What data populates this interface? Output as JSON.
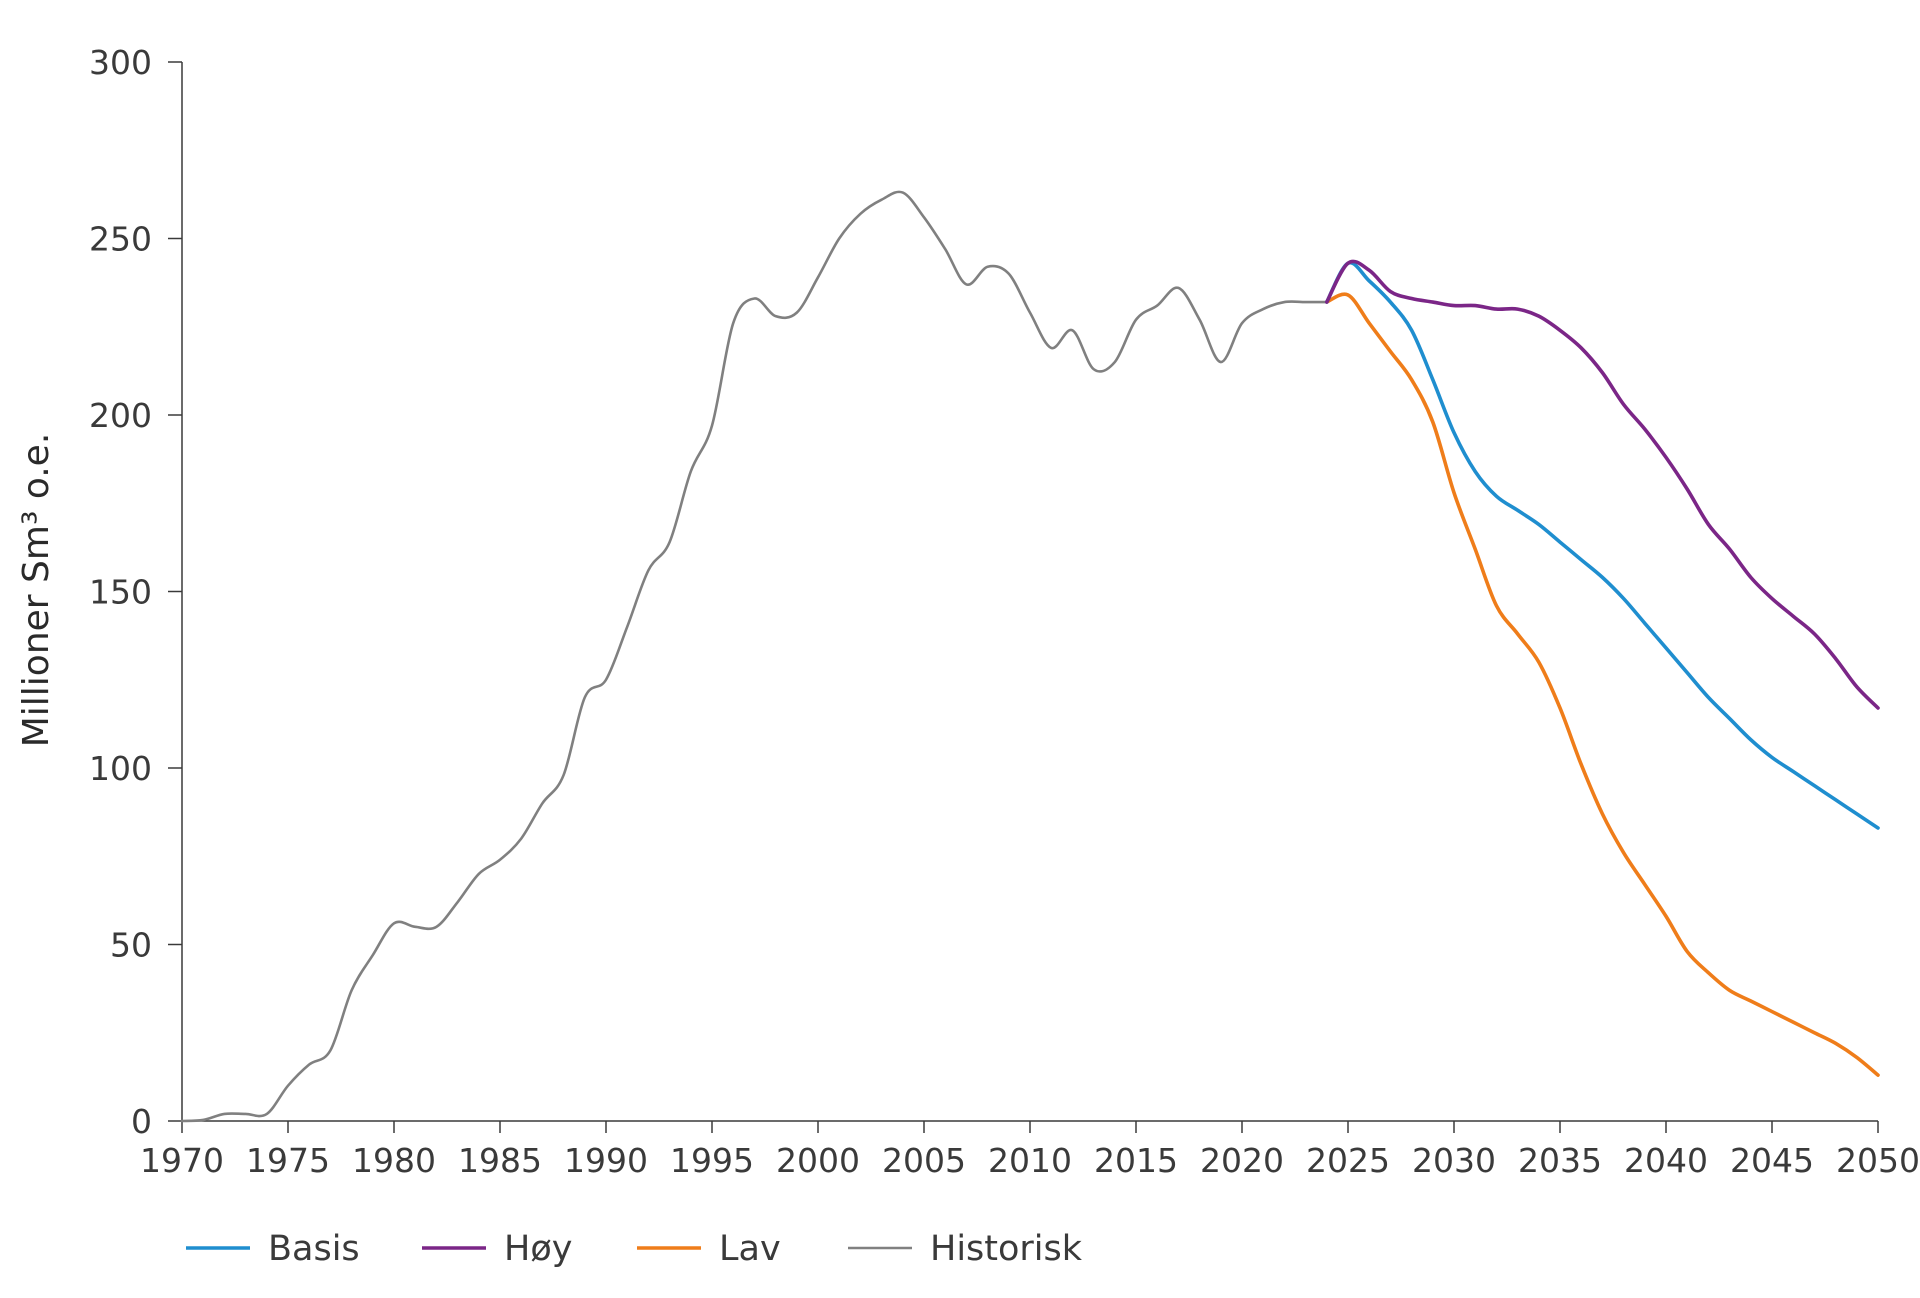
{
  "chart_data": {
    "type": "line",
    "title": "",
    "xlabel": "",
    "ylabel": "Millioner Sm³ o.e.",
    "xlim": [
      1970,
      2050
    ],
    "ylim": [
      0,
      300
    ],
    "xticks": [
      1970,
      1975,
      1980,
      1985,
      1990,
      1995,
      2000,
      2005,
      2010,
      2015,
      2020,
      2025,
      2030,
      2035,
      2040,
      2045,
      2050
    ],
    "yticks": [
      0,
      50,
      100,
      150,
      200,
      250,
      300
    ],
    "grid": false,
    "legend_position": "bottom-left",
    "legend": [
      "Basis",
      "Høy",
      "Lav",
      "Historisk"
    ],
    "series": [
      {
        "name": "Historisk",
        "color": "#808080",
        "x": [
          1970,
          1971,
          1972,
          1973,
          1974,
          1975,
          1976,
          1977,
          1978,
          1979,
          1980,
          1981,
          1982,
          1983,
          1984,
          1985,
          1986,
          1987,
          1988,
          1989,
          1990,
          1991,
          1992,
          1993,
          1994,
          1995,
          1996,
          1997,
          1998,
          1999,
          2000,
          2001,
          2002,
          2003,
          2004,
          2005,
          2006,
          2007,
          2008,
          2009,
          2010,
          2011,
          2012,
          2013,
          2014,
          2015,
          2016,
          2017,
          2018,
          2019,
          2020,
          2021,
          2022,
          2023,
          2024
        ],
        "values": [
          0,
          0.3,
          2,
          2,
          2,
          10,
          16,
          20,
          37,
          47,
          56,
          55,
          55,
          62,
          70,
          74,
          80,
          90,
          98,
          120,
          125,
          140,
          156,
          164,
          184,
          197,
          226,
          233,
          228,
          229,
          239,
          250,
          257,
          261,
          263,
          256,
          247,
          237,
          242,
          240,
          229,
          219,
          224,
          213,
          215,
          227,
          231,
          236,
          227,
          215,
          226,
          230,
          232,
          232,
          232
        ]
      },
      {
        "name": "Basis",
        "color": "#1f8ecf",
        "x": [
          2024,
          2025,
          2026,
          2027,
          2028,
          2029,
          2030,
          2031,
          2032,
          2033,
          2034,
          2035,
          2036,
          2037,
          2038,
          2039,
          2040,
          2041,
          2042,
          2043,
          2044,
          2045,
          2046,
          2047,
          2048,
          2049,
          2050
        ],
        "values": [
          232,
          243,
          238,
          232,
          224,
          210,
          195,
          184,
          177,
          173,
          169,
          164,
          159,
          154,
          148,
          141,
          134,
          127,
          120,
          114,
          108,
          103,
          99,
          95,
          91,
          87,
          83
        ]
      },
      {
        "name": "Høy",
        "color": "#7b2687",
        "x": [
          2024,
          2025,
          2026,
          2027,
          2028,
          2029,
          2030,
          2031,
          2032,
          2033,
          2034,
          2035,
          2036,
          2037,
          2038,
          2039,
          2040,
          2041,
          2042,
          2043,
          2044,
          2045,
          2046,
          2047,
          2048,
          2049,
          2050
        ],
        "values": [
          232,
          243,
          241,
          235,
          233,
          232,
          231,
          231,
          230,
          230,
          228,
          224,
          219,
          212,
          203,
          196,
          188,
          179,
          169,
          162,
          154,
          148,
          143,
          138,
          131,
          123,
          117
        ]
      },
      {
        "name": "Lav",
        "color": "#ef7d1a",
        "x": [
          2024,
          2025,
          2026,
          2027,
          2028,
          2029,
          2030,
          2031,
          2032,
          2033,
          2034,
          2035,
          2036,
          2037,
          2038,
          2039,
          2040,
          2041,
          2042,
          2043,
          2044,
          2045,
          2046,
          2047,
          2048,
          2049,
          2050
        ],
        "values": [
          232,
          234,
          226,
          218,
          210,
          198,
          178,
          162,
          146,
          138,
          130,
          117,
          101,
          87,
          76,
          67,
          58,
          48,
          42,
          37,
          34,
          31,
          28,
          25,
          22,
          18,
          13
        ]
      }
    ]
  }
}
